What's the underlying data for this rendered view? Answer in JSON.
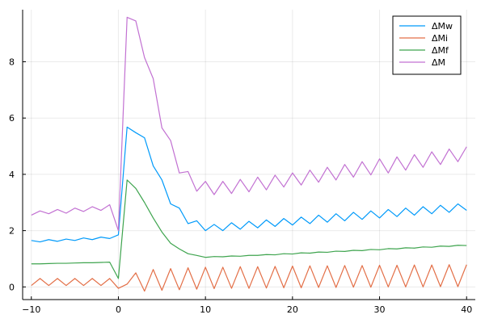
{
  "chart_data": {
    "type": "line",
    "title": "",
    "xlabel": "",
    "ylabel": "",
    "xlim": [
      -11,
      41
    ],
    "ylim": [
      -0.45,
      9.85
    ],
    "xticks": [
      -10,
      0,
      10,
      20,
      30,
      40
    ],
    "yticks": [
      0,
      2,
      4,
      6,
      8
    ],
    "grid": true,
    "legend_position": "top-right",
    "x": [
      -10,
      -9,
      -8,
      -7,
      -6,
      -5,
      -4,
      -3,
      -2,
      -1,
      0,
      1,
      2,
      3,
      4,
      5,
      6,
      7,
      8,
      9,
      10,
      11,
      12,
      13,
      14,
      15,
      16,
      17,
      18,
      19,
      20,
      21,
      22,
      23,
      24,
      25,
      26,
      27,
      28,
      29,
      30,
      31,
      32,
      33,
      34,
      35,
      36,
      37,
      38,
      39,
      40
    ],
    "series": [
      {
        "name": "ΔMw",
        "color": "#009AFA",
        "values": [
          1.65,
          1.6,
          1.68,
          1.62,
          1.7,
          1.65,
          1.74,
          1.68,
          1.77,
          1.72,
          1.85,
          5.68,
          5.48,
          5.3,
          4.3,
          3.8,
          2.95,
          2.8,
          2.25,
          2.35,
          2.0,
          2.22,
          2.0,
          2.28,
          2.05,
          2.33,
          2.1,
          2.38,
          2.15,
          2.43,
          2.2,
          2.48,
          2.25,
          2.55,
          2.3,
          2.6,
          2.35,
          2.65,
          2.4,
          2.7,
          2.45,
          2.75,
          2.5,
          2.8,
          2.55,
          2.85,
          2.6,
          2.9,
          2.65,
          2.95,
          2.72
        ]
      },
      {
        "name": "ΔMi",
        "color": "#E36F47",
        "values": [
          0.05,
          0.3,
          0.05,
          0.3,
          0.05,
          0.3,
          0.05,
          0.3,
          0.05,
          0.3,
          -0.05,
          0.1,
          0.5,
          -0.15,
          0.62,
          -0.12,
          0.65,
          -0.1,
          0.68,
          -0.08,
          0.7,
          -0.06,
          0.7,
          -0.05,
          0.72,
          -0.05,
          0.72,
          -0.04,
          0.73,
          -0.03,
          0.74,
          -0.03,
          0.75,
          -0.02,
          0.75,
          -0.02,
          0.76,
          -0.01,
          0.76,
          -0.01,
          0.77,
          0.0,
          0.77,
          0.0,
          0.78,
          0.0,
          0.78,
          0.01,
          0.79,
          0.01,
          0.79
        ]
      },
      {
        "name": "ΔMf",
        "color": "#3EA44E",
        "values": [
          0.82,
          0.82,
          0.83,
          0.84,
          0.84,
          0.85,
          0.86,
          0.86,
          0.87,
          0.88,
          0.3,
          3.8,
          3.5,
          3.0,
          2.45,
          1.95,
          1.55,
          1.35,
          1.18,
          1.12,
          1.05,
          1.08,
          1.07,
          1.1,
          1.09,
          1.12,
          1.12,
          1.15,
          1.14,
          1.18,
          1.17,
          1.21,
          1.2,
          1.24,
          1.23,
          1.27,
          1.26,
          1.3,
          1.29,
          1.33,
          1.32,
          1.36,
          1.35,
          1.39,
          1.38,
          1.42,
          1.41,
          1.45,
          1.44,
          1.48,
          1.47
        ]
      },
      {
        "name": "ΔM",
        "color": "#C271D2",
        "values": [
          2.55,
          2.7,
          2.6,
          2.75,
          2.62,
          2.8,
          2.68,
          2.85,
          2.72,
          2.92,
          2.0,
          9.58,
          9.45,
          8.15,
          7.4,
          5.65,
          5.2,
          4.05,
          4.1,
          3.4,
          3.75,
          3.28,
          3.75,
          3.32,
          3.82,
          3.38,
          3.9,
          3.45,
          3.97,
          3.55,
          4.05,
          3.62,
          4.15,
          3.72,
          4.25,
          3.8,
          4.35,
          3.9,
          4.45,
          3.98,
          4.55,
          4.05,
          4.62,
          4.15,
          4.7,
          4.25,
          4.8,
          4.35,
          4.9,
          4.45,
          4.98
        ]
      }
    ]
  }
}
